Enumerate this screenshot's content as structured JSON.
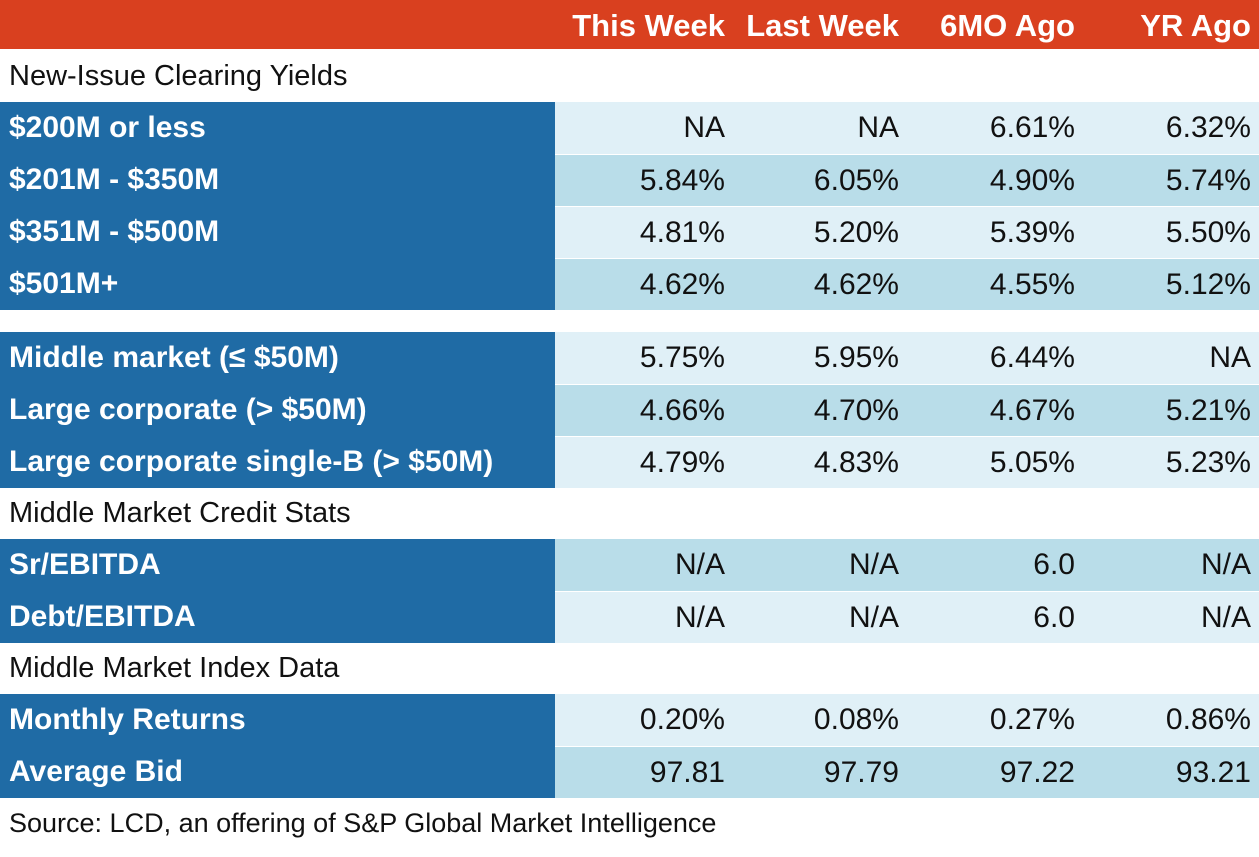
{
  "chart_data": {
    "type": "table",
    "columns": [
      "This Week",
      "Last Week",
      "6MO Ago",
      "YR Ago"
    ],
    "sections": [
      {
        "title": "New-Issue Clearing Yields",
        "rows": [
          {
            "label": "$200M or less",
            "values": [
              "NA",
              "NA",
              "6.61%",
              "6.32%"
            ]
          },
          {
            "label": "$201M - $350M",
            "values": [
              "5.84%",
              "6.05%",
              "4.90%",
              "5.74%"
            ]
          },
          {
            "label": "$351M - $500M",
            "values": [
              "4.81%",
              "5.20%",
              "5.39%",
              "5.50%"
            ]
          },
          {
            "label": "$501M+",
            "values": [
              "4.62%",
              "4.62%",
              "4.55%",
              "5.12%"
            ]
          }
        ]
      },
      {
        "title": "",
        "rows": [
          {
            "label": "Middle market (≤ $50M)",
            "values": [
              "5.75%",
              "5.95%",
              "6.44%",
              "NA"
            ]
          },
          {
            "label": "Large corporate (> $50M)",
            "values": [
              "4.66%",
              "4.70%",
              "4.67%",
              "5.21%"
            ]
          },
          {
            "label": "Large corporate single-B (> $50M)",
            "values": [
              "4.79%",
              "4.83%",
              "5.05%",
              "5.23%"
            ]
          }
        ]
      },
      {
        "title": "Middle Market Credit Stats",
        "rows": [
          {
            "label": "Sr/EBITDA",
            "values": [
              "N/A",
              "N/A",
              "6.0",
              "N/A"
            ]
          },
          {
            "label": "Debt/EBITDA",
            "values": [
              "N/A",
              "N/A",
              "6.0",
              "N/A"
            ]
          }
        ]
      },
      {
        "title": "Middle Market Index Data",
        "rows": [
          {
            "label": "Monthly Returns",
            "values": [
              "0.20%",
              "0.08%",
              "0.27%",
              "0.86%"
            ]
          },
          {
            "label": "Average Bid",
            "values": [
              "97.81",
              "97.79",
              "97.22",
              "93.21"
            ]
          }
        ]
      }
    ],
    "source": "Source: LCD, an offering of S&P Global Market Intelligence"
  },
  "colors": {
    "header_bg": "#d9401f",
    "label_bg": "#1f6ba5",
    "row_light": "#e0f0f7",
    "row_dark": "#b9dde9"
  }
}
